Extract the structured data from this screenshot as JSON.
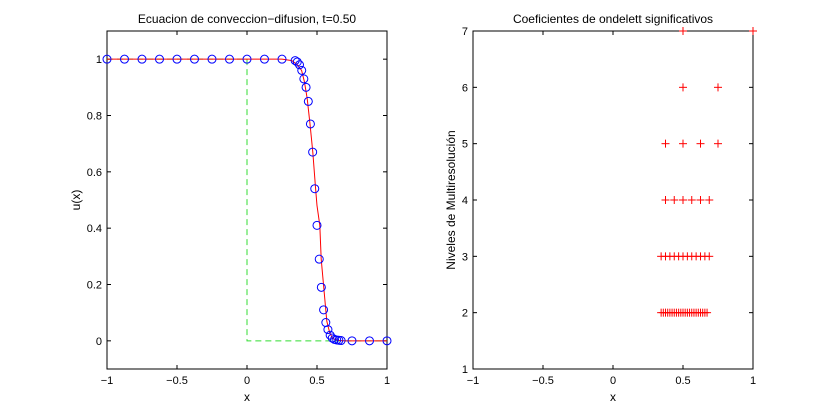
{
  "chart_data": [
    {
      "type": "line",
      "title": "Ecuacion de conveccion−difusion, t=0.50",
      "xlabel": "x",
      "ylabel": "u(x)",
      "xlim": [
        -1,
        1
      ],
      "ylim": [
        -0.1,
        1.1
      ],
      "xticks": [
        -1,
        -0.5,
        0,
        0.5,
        1
      ],
      "xtick_labels": [
        "−1",
        "−0.5",
        "0",
        "0.5",
        "1"
      ],
      "yticks": [
        0,
        0.2,
        0.4,
        0.6,
        0.8,
        1
      ],
      "ytick_labels": [
        "0",
        "0.2",
        "0.4",
        "0.6",
        "0.8",
        "1"
      ],
      "grid": false,
      "series": [
        {
          "style": "dashed",
          "color": "#33dd33",
          "x": [
            -1,
            0,
            0,
            1
          ],
          "y": [
            1,
            1,
            0,
            0
          ]
        },
        {
          "style": "solid",
          "color": "#ff0000",
          "x": [
            -1,
            0.25,
            0.32,
            0.36,
            0.39,
            0.41,
            0.43,
            0.45,
            0.47,
            0.49,
            0.5,
            0.52,
            0.53,
            0.55,
            0.57,
            0.59,
            0.61,
            0.63,
            0.66,
            0.7,
            1
          ],
          "y": [
            1,
            1,
            0.995,
            0.98,
            0.96,
            0.92,
            0.86,
            0.77,
            0.67,
            0.54,
            0.48,
            0.41,
            0.29,
            0.18,
            0.07,
            0.03,
            0.01,
            0.004,
            0.001,
            0,
            0
          ]
        },
        {
          "style": "markers",
          "marker": "circle",
          "color": "#0000ff",
          "x": [
            -1,
            -0.875,
            -0.75,
            -0.625,
            -0.5,
            -0.375,
            -0.25,
            -0.125,
            0,
            0.125,
            0.25,
            0.344,
            0.359,
            0.375,
            0.391,
            0.406,
            0.422,
            0.438,
            0.453,
            0.469,
            0.484,
            0.5,
            0.516,
            0.531,
            0.547,
            0.563,
            0.578,
            0.594,
            0.609,
            0.625,
            0.641,
            0.656,
            0.672,
            0.75,
            0.875,
            1
          ],
          "y": [
            1,
            1,
            1,
            1,
            1,
            1,
            1,
            1,
            1,
            1,
            1,
            0.995,
            0.99,
            0.98,
            0.96,
            0.93,
            0.9,
            0.85,
            0.77,
            0.67,
            0.54,
            0.41,
            0.29,
            0.19,
            0.11,
            0.065,
            0.04,
            0.02,
            0.01,
            0.005,
            0.003,
            0.002,
            0.001,
            0,
            0,
            0
          ]
        }
      ]
    },
    {
      "type": "scatter",
      "title": "Coeficientes de ondelett significativos",
      "xlabel": "x",
      "ylabel": "Niveles de Multiresolución",
      "xlim": [
        -1,
        1
      ],
      "ylim": [
        1,
        7
      ],
      "xticks": [
        -1,
        -0.5,
        0,
        0.5,
        1
      ],
      "xtick_labels": [
        "−1",
        "−0.5",
        "0",
        "0.5",
        "1"
      ],
      "yticks": [
        1,
        2,
        3,
        4,
        5,
        6,
        7
      ],
      "ytick_labels": [
        "1",
        "2",
        "3",
        "4",
        "5",
        "6",
        "7"
      ],
      "grid": false,
      "series": [
        {
          "marker": "plus",
          "color": "#ff0000",
          "points": [
            [
              0.5,
              7
            ],
            [
              1,
              7
            ],
            [
              0.5,
              6
            ],
            [
              0.75,
              6
            ],
            [
              0.375,
              5
            ],
            [
              0.5,
              5
            ],
            [
              0.625,
              5
            ],
            [
              0.75,
              5
            ],
            [
              0.375,
              4
            ],
            [
              0.4375,
              4
            ],
            [
              0.5,
              4
            ],
            [
              0.5625,
              4
            ],
            [
              0.625,
              4
            ],
            [
              0.6875,
              4
            ],
            [
              0.34375,
              3
            ],
            [
              0.375,
              3
            ],
            [
              0.40625,
              3
            ],
            [
              0.4375,
              3
            ],
            [
              0.46875,
              3
            ],
            [
              0.5,
              3
            ],
            [
              0.53125,
              3
            ],
            [
              0.5625,
              3
            ],
            [
              0.59375,
              3
            ],
            [
              0.625,
              3
            ],
            [
              0.65625,
              3
            ],
            [
              0.6875,
              3
            ],
            [
              0.34375,
              2
            ],
            [
              0.359375,
              2
            ],
            [
              0.375,
              2
            ],
            [
              0.390625,
              2
            ],
            [
              0.40625,
              2
            ],
            [
              0.421875,
              2
            ],
            [
              0.4375,
              2
            ],
            [
              0.453125,
              2
            ],
            [
              0.46875,
              2
            ],
            [
              0.484375,
              2
            ],
            [
              0.5,
              2
            ],
            [
              0.515625,
              2
            ],
            [
              0.53125,
              2
            ],
            [
              0.546875,
              2
            ],
            [
              0.5625,
              2
            ],
            [
              0.578125,
              2
            ],
            [
              0.59375,
              2
            ],
            [
              0.609375,
              2
            ],
            [
              0.625,
              2
            ],
            [
              0.640625,
              2
            ],
            [
              0.65625,
              2
            ],
            [
              0.671875,
              2
            ]
          ]
        }
      ]
    }
  ]
}
